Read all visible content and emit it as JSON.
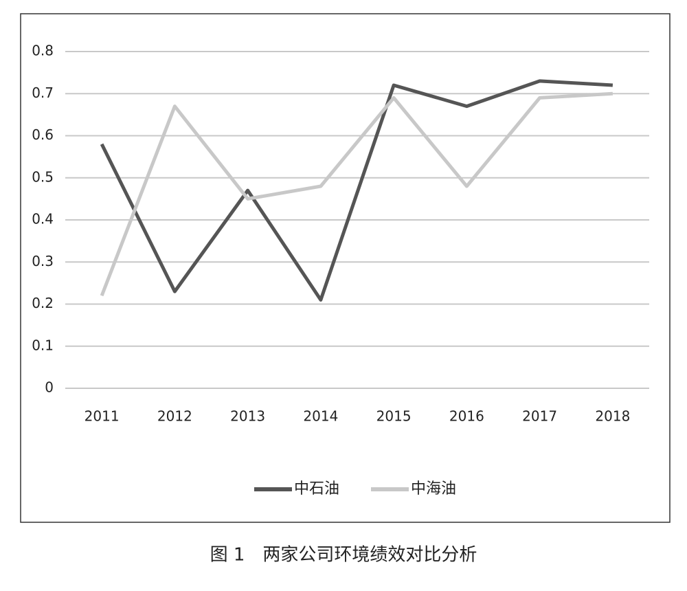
{
  "chart_data": {
    "type": "line",
    "caption": "图 1　两家公司环境绩效对比分析",
    "categories": [
      "2011",
      "2012",
      "2013",
      "2014",
      "2015",
      "2016",
      "2017",
      "2018"
    ],
    "series": [
      {
        "name": "中石油",
        "color": "#555555",
        "values": [
          0.58,
          0.23,
          0.47,
          0.21,
          0.72,
          0.67,
          0.73,
          0.72
        ]
      },
      {
        "name": "中海油",
        "color": "#c8c8c8",
        "values": [
          0.22,
          0.67,
          0.45,
          0.48,
          0.69,
          0.48,
          0.69,
          0.7
        ]
      }
    ],
    "ylim": [
      0,
      0.8
    ],
    "yticks": [
      0,
      0.1,
      0.2,
      0.3,
      0.4,
      0.5,
      0.6,
      0.7,
      0.8
    ],
    "grid": true,
    "legend": "bottom"
  }
}
